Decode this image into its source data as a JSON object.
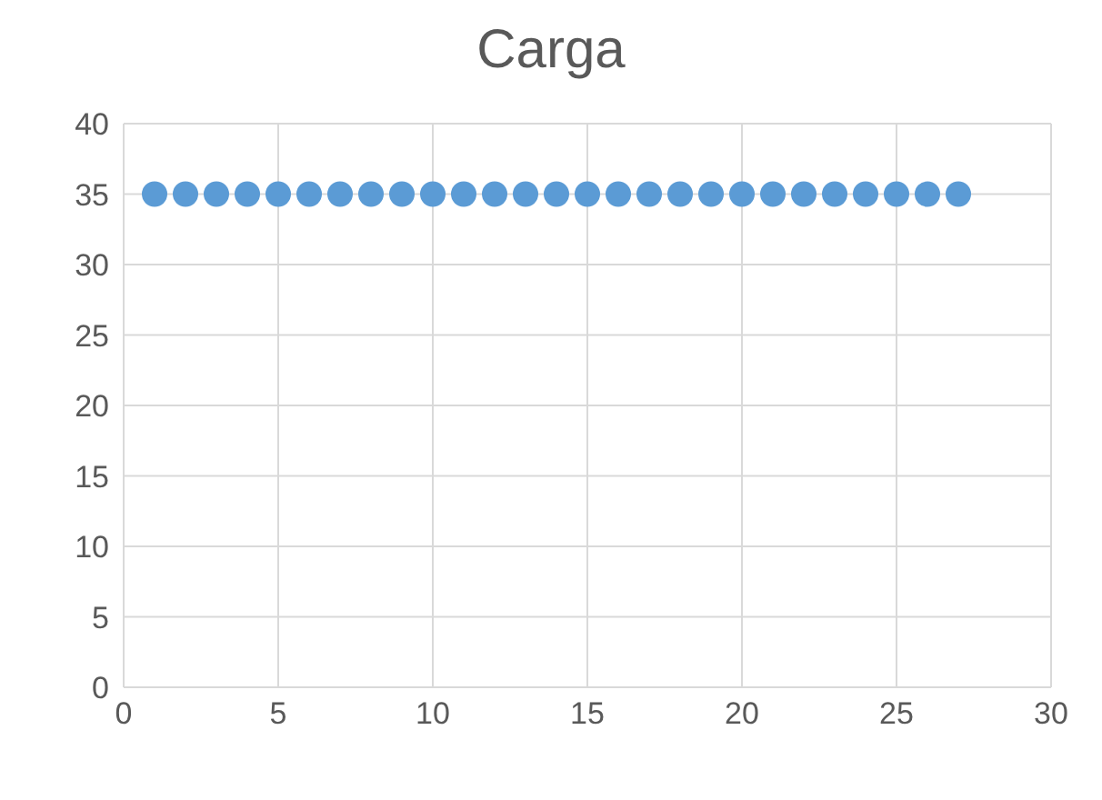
{
  "chart_data": {
    "type": "scatter",
    "title": "Carga",
    "x": [
      1,
      2,
      3,
      4,
      5,
      6,
      7,
      8,
      9,
      10,
      11,
      12,
      13,
      14,
      15,
      16,
      17,
      18,
      19,
      20,
      21,
      22,
      23,
      24,
      25,
      26,
      27
    ],
    "values": [
      35,
      35,
      35,
      35,
      35,
      35,
      35,
      35,
      35,
      35,
      35,
      35,
      35,
      35,
      35,
      35,
      35,
      35,
      35,
      35,
      35,
      35,
      35,
      35,
      35,
      35,
      35
    ],
    "color": "#5b9bd5",
    "marker": "circle",
    "xlim": [
      0,
      30
    ],
    "xticks": [
      0,
      5,
      10,
      15,
      20,
      25,
      30
    ],
    "ylim": [
      0,
      40
    ],
    "yticks": [
      0,
      5,
      10,
      15,
      20,
      25,
      30,
      35,
      40
    ],
    "grid": true,
    "legend": false
  }
}
